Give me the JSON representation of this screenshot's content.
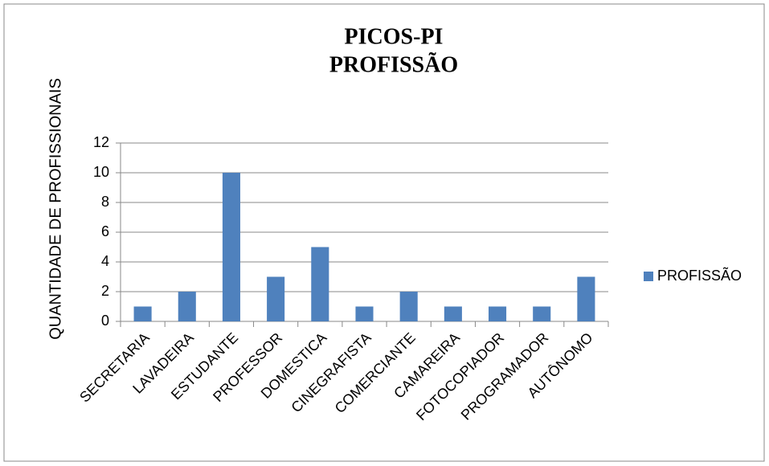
{
  "chart_data": {
    "type": "bar",
    "title": "PICOS-PI",
    "subtitle": "PROFISSÃO",
    "y_label": "QUANTIDADE  DE PROFISSIONAIS",
    "categories": [
      "SECRETARIA",
      "LAVADEIRA",
      "ESTUDANTE",
      "PROFESSOR",
      "DOMESTICA",
      "CINEGRAFISTA",
      "COMERCIANTE",
      "CAMAREIRA",
      "FOTOCOPIADOR",
      "PROGRAMADOR",
      "AUTÔNOMO"
    ],
    "series": [
      {
        "name": "PROFISSÃO",
        "color": "#4f81bd",
        "values": [
          1,
          2,
          10,
          3,
          5,
          1,
          2,
          1,
          1,
          1,
          3
        ]
      }
    ],
    "ylim": [
      0,
      12
    ],
    "yticks": [
      0,
      2,
      4,
      6,
      8,
      10,
      12
    ],
    "grid": true,
    "legend": "right"
  }
}
